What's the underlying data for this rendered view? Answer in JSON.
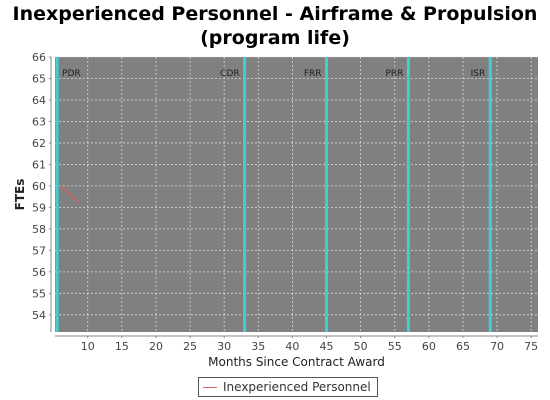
{
  "chart_data": {
    "type": "line",
    "title_lines": [
      "Inexperienced Personnel - Airframe & Propulsion",
      "(program life)"
    ],
    "xlabel": "Months Since Contract Award",
    "ylabel": "FTEs",
    "xlim": [
      5.2,
      76
    ],
    "ylim": [
      53.2,
      66
    ],
    "x_ticks": [
      10,
      15,
      20,
      25,
      30,
      35,
      40,
      45,
      50,
      55,
      60,
      65,
      70,
      75
    ],
    "y_ticks": [
      54,
      55,
      56,
      57,
      58,
      59,
      60,
      61,
      62,
      63,
      64,
      65,
      66
    ],
    "grid": true,
    "plot_background": "#808080",
    "milestones": [
      {
        "label": "PDR",
        "x": 5.5
      },
      {
        "label": "CDR",
        "x": 33
      },
      {
        "label": "FRR",
        "x": 45
      },
      {
        "label": "PRR",
        "x": 57
      },
      {
        "label": "ISR",
        "x": 69
      }
    ],
    "milestone_color": "#40d0d0",
    "series": [
      {
        "name": "Inexperienced Personnel",
        "color": "#e06060",
        "x": [
          6,
          8.8
        ],
        "y": [
          60.0,
          59.2
        ]
      }
    ],
    "legend_position": "bottom"
  }
}
